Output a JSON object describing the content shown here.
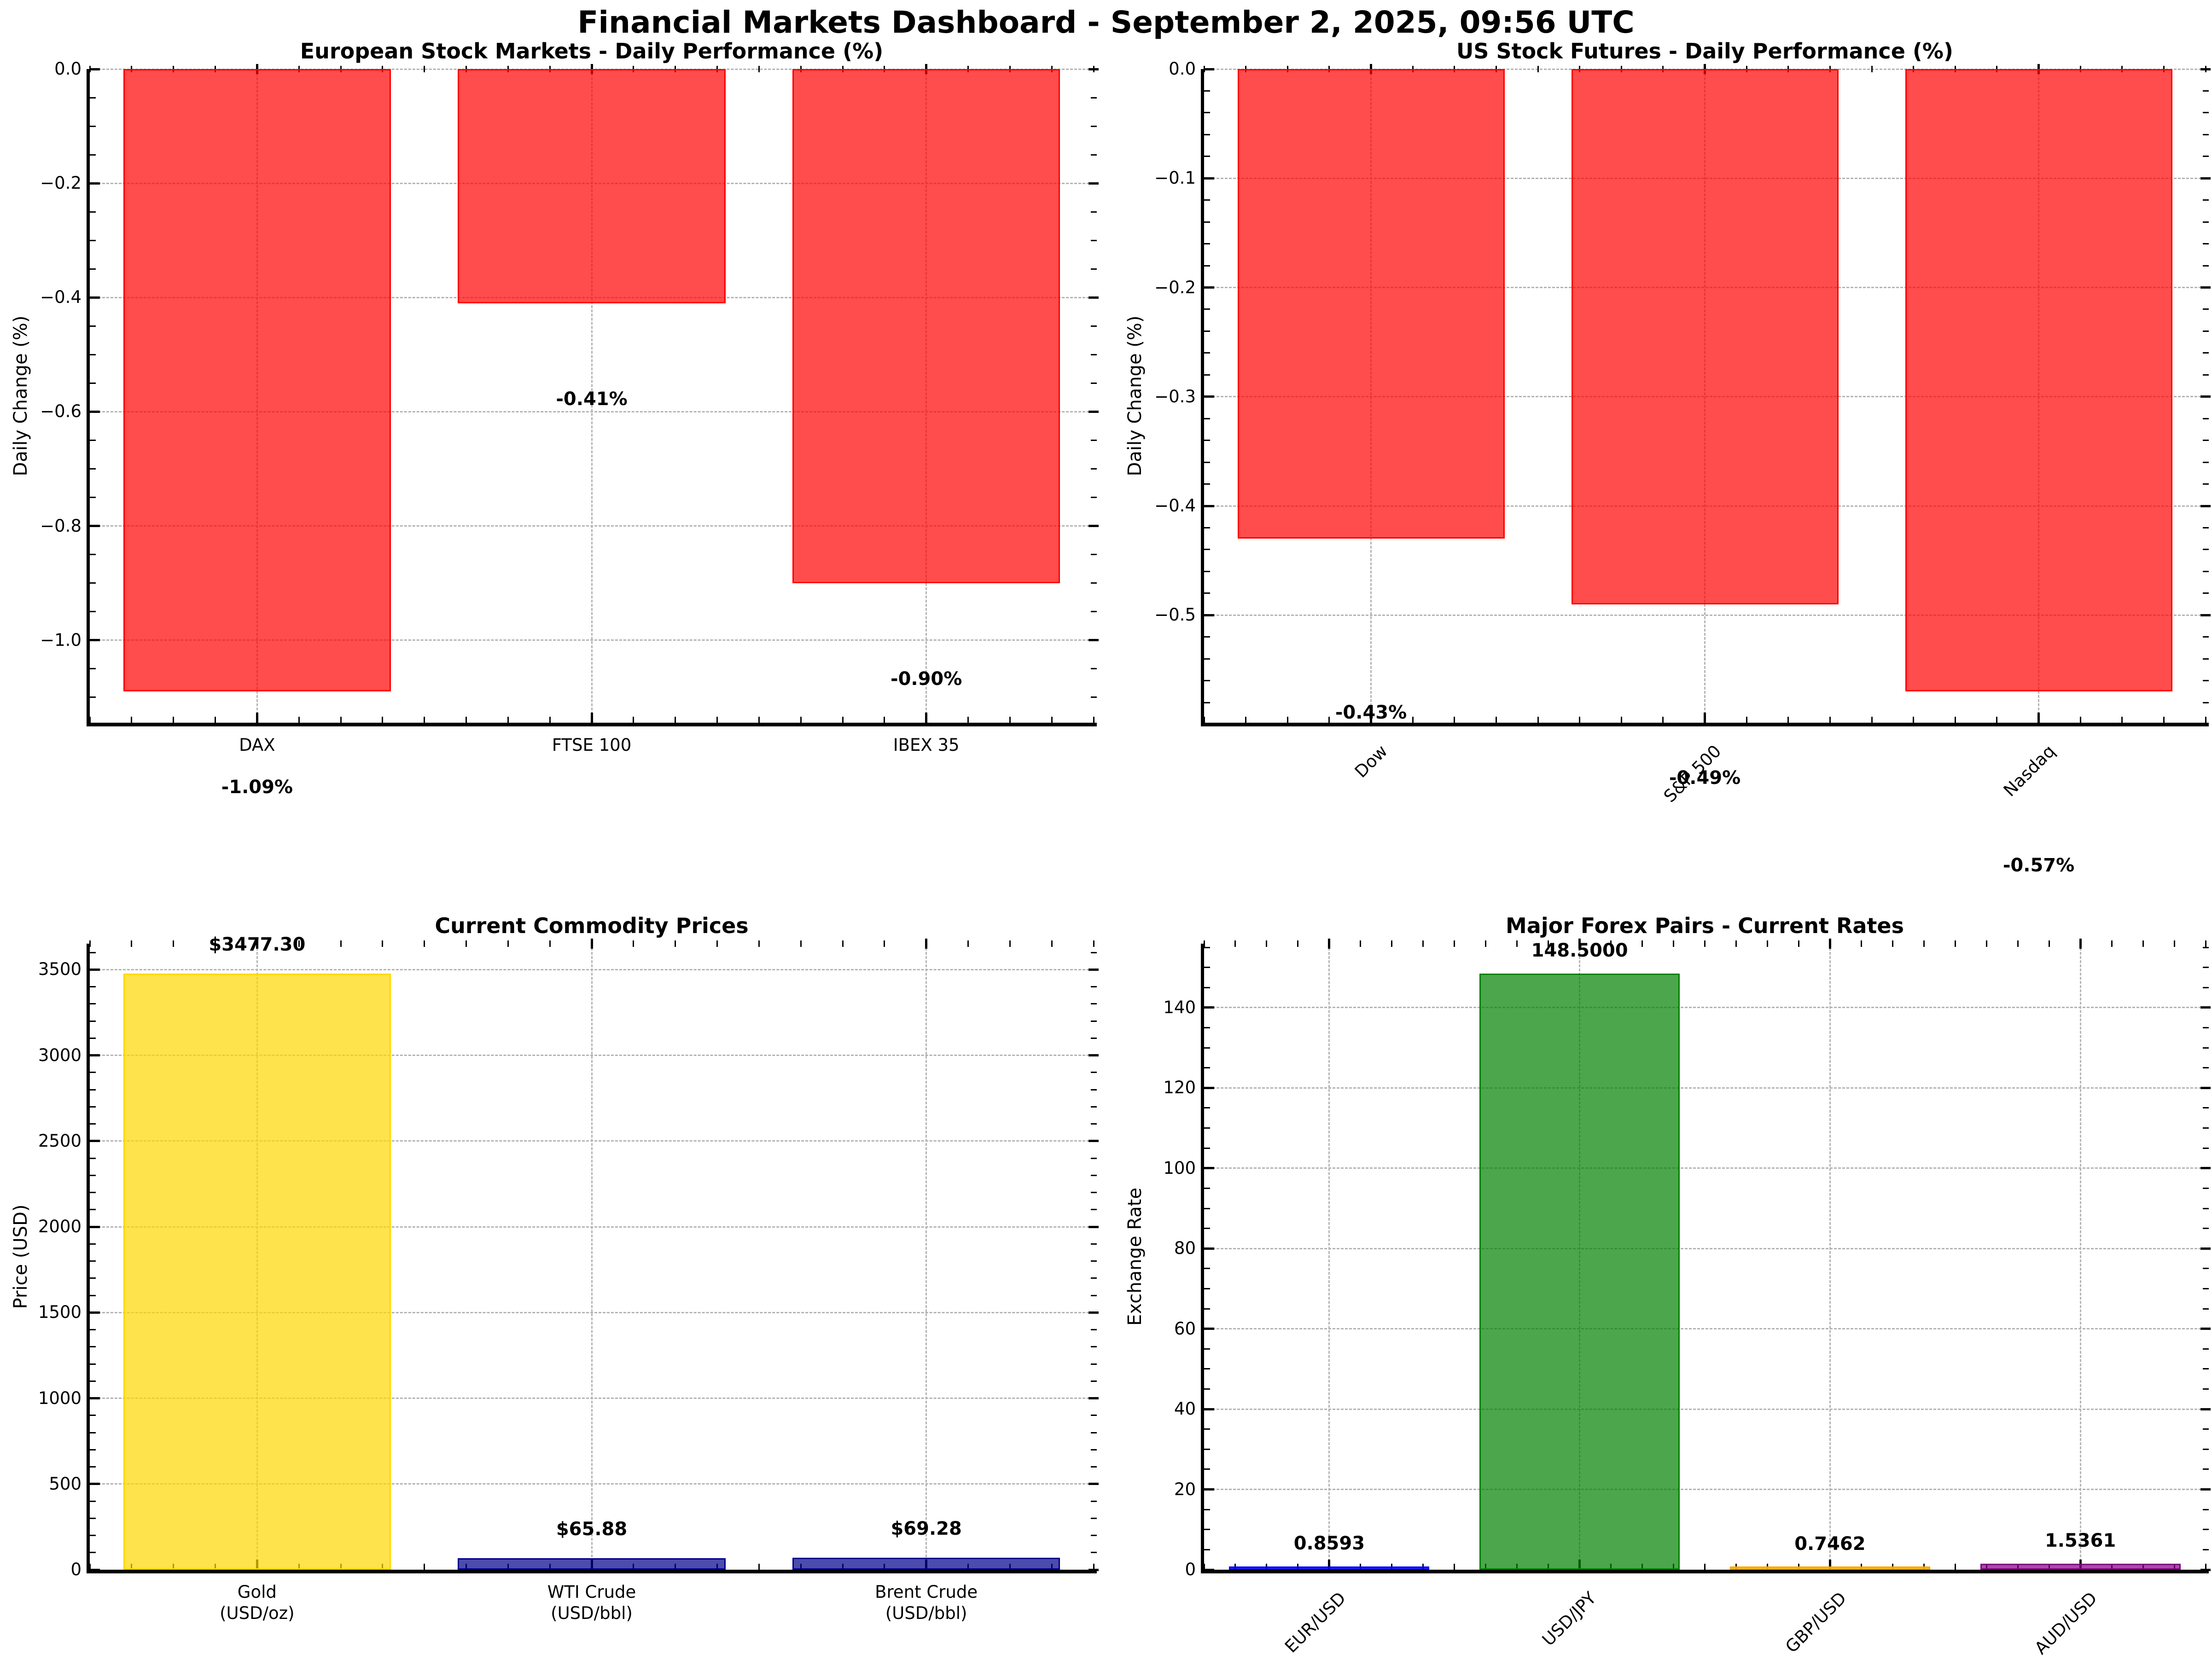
{
  "figure": {
    "title": "Financial Markets Dashboard - September 2, 2025, 09:56 UTC",
    "background_color": "#ffffff",
    "grid_color": "#b4b4b4",
    "negative_bar_color": "#ff0000",
    "bar_alpha": 0.7
  },
  "chart_data": [
    {
      "type": "bar",
      "title": "European Stock Markets - Daily Performance (%)",
      "ylabel": "Daily Change (%)",
      "categories": [
        "DAX",
        "FTSE 100",
        "IBEX 35"
      ],
      "values": [
        -1.09,
        -0.41,
        -0.9
      ],
      "bar_labels": [
        "-1.09%",
        "-0.41%",
        "-0.90%"
      ],
      "bar_colors": [
        "#ff0000",
        "#ff0000",
        "#ff0000"
      ],
      "ylim": [
        -1.1445,
        0
      ],
      "yticks": [
        0,
        -0.2,
        -0.4,
        -0.6,
        -0.8,
        -1.0
      ],
      "ytick_labels": [
        "0.0",
        "−0.2",
        "−0.4",
        "−0.6",
        "−0.8",
        "−1.0"
      ],
      "grid": true,
      "legend": "none"
    },
    {
      "type": "bar",
      "title": "US Stock Futures - Daily Performance (%)",
      "ylabel": "Daily Change (%)",
      "categories": [
        "Dow",
        "S&P 500",
        "Nasdaq"
      ],
      "values": [
        -0.43,
        -0.49,
        -0.57
      ],
      "bar_labels": [
        "-0.43%",
        "-0.49%",
        "-0.57%"
      ],
      "bar_colors": [
        "#ff0000",
        "#ff0000",
        "#ff0000"
      ],
      "ylim": [
        -0.5985,
        0
      ],
      "yticks": [
        0,
        -0.1,
        -0.2,
        -0.3,
        -0.4,
        -0.5
      ],
      "ytick_labels": [
        "0.0",
        "−0.1",
        "−0.2",
        "−0.3",
        "−0.4",
        "−0.5"
      ],
      "grid": true,
      "legend": "none"
    },
    {
      "type": "bar",
      "title": "Current Commodity Prices",
      "ylabel": "Price (USD)",
      "categories": [
        "Gold\n(USD/oz)",
        "WTI Crude\n(USD/bbl)",
        "Brent Crude\n(USD/bbl)"
      ],
      "values": [
        3477.3,
        65.88,
        69.28
      ],
      "bar_labels": [
        "$3477.30",
        "$65.88",
        "$69.28"
      ],
      "bar_colors": [
        "#ffd700",
        "#00008b",
        "#00008b"
      ],
      "ylim": [
        0,
        3651.2
      ],
      "yticks": [
        0,
        500,
        1000,
        1500,
        2000,
        2500,
        3000,
        3500
      ],
      "ytick_labels": [
        "0",
        "500",
        "1000",
        "1500",
        "2000",
        "2500",
        "3000",
        "3500"
      ],
      "grid": true,
      "legend": "none"
    },
    {
      "type": "bar",
      "title": "Major Forex Pairs - Current Rates",
      "ylabel": "Exchange Rate",
      "categories": [
        "EUR/USD",
        "USD/JPY",
        "GBP/USD",
        "AUD/USD"
      ],
      "values": [
        0.8593,
        148.5,
        0.7462,
        1.5361
      ],
      "bar_labels": [
        "0.8593",
        "148.5000",
        "0.7462",
        "1.5361"
      ],
      "bar_colors": [
        "#0000ff",
        "#008000",
        "#ffa500",
        "#800080"
      ],
      "ylim": [
        0,
        155.925
      ],
      "yticks": [
        0,
        20,
        40,
        60,
        80,
        100,
        120,
        140
      ],
      "ytick_labels": [
        "0",
        "20",
        "40",
        "60",
        "80",
        "100",
        "120",
        "140"
      ],
      "grid": true,
      "legend": "none"
    }
  ]
}
